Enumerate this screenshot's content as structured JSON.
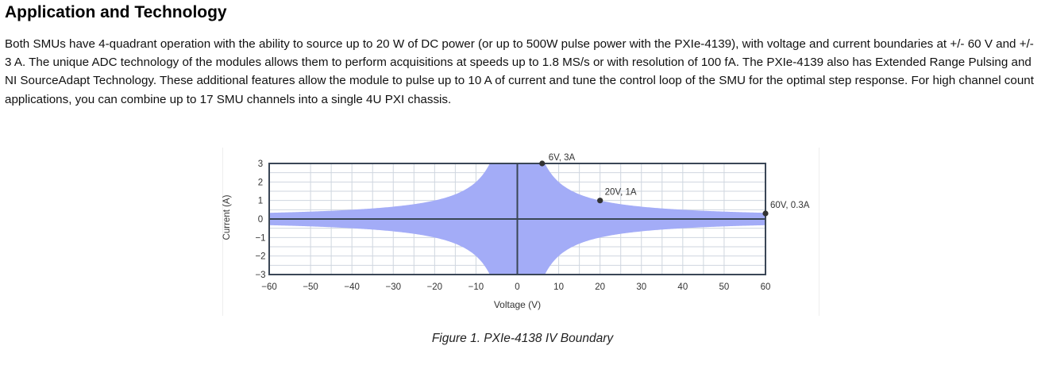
{
  "article": {
    "heading": "Application and Technology",
    "paragraph": "Both SMUs have 4-quadrant operation with the ability to source up to 20 W of DC power (or up to 500W pulse power with the PXIe-4139), with voltage and current boundaries at +/- 60 V and +/- 3 A. The unique ADC technology of the modules allows them to perform acquisitions at speeds up to 1.8 MS/s or with resolution of 100 fA. The PXIe-4139 also has Extended Range Pulsing and NI SourceAdapt Technology. These additional features allow the module to pulse up to 10 A of current and tune the control loop of the SMU for the optimal step response. For high channel count applications, you can combine up to 17 SMU channels into a single 4U PXI chassis."
  },
  "figure": {
    "caption": "Figure 1. PXIe-4138 IV Boundary"
  },
  "chart_data": {
    "type": "area",
    "title": "",
    "xlabel": "Voltage (V)",
    "ylabel": "Current (A)",
    "xlim": [
      -60,
      60
    ],
    "ylim": [
      -3,
      3
    ],
    "x_ticks": [
      -60,
      -50,
      -40,
      -30,
      -20,
      -10,
      0,
      10,
      20,
      30,
      40,
      50,
      60
    ],
    "y_ticks": [
      3,
      2,
      1,
      0,
      -1,
      -2,
      -3
    ],
    "x_tick_labels": [
      "−60",
      "−50",
      "−40",
      "−30",
      "−20",
      "−10",
      "0",
      "10",
      "20",
      "30",
      "40",
      "50",
      "60"
    ],
    "y_tick_labels": [
      "3",
      "2",
      "1",
      "0",
      "−1",
      "−2",
      "−3"
    ],
    "grid": true,
    "boundary": {
      "description_free": true,
      "power_limit_w": 20,
      "voltage_limit_v": 60,
      "current_limit_a": 3,
      "color": "#a3acf7"
    },
    "annotations": [
      {
        "label": "6V, 3A",
        "x": 6,
        "y": 3
      },
      {
        "label": "20V, 1A",
        "x": 20,
        "y": 1
      },
      {
        "label": "60V, 0.3A",
        "x": 60,
        "y": 0.3
      }
    ],
    "colors": {
      "fill": "#a3acf7",
      "axis": "#3a4656",
      "grid": "#cfd6df",
      "point": "#333333",
      "text": "#333333"
    }
  }
}
